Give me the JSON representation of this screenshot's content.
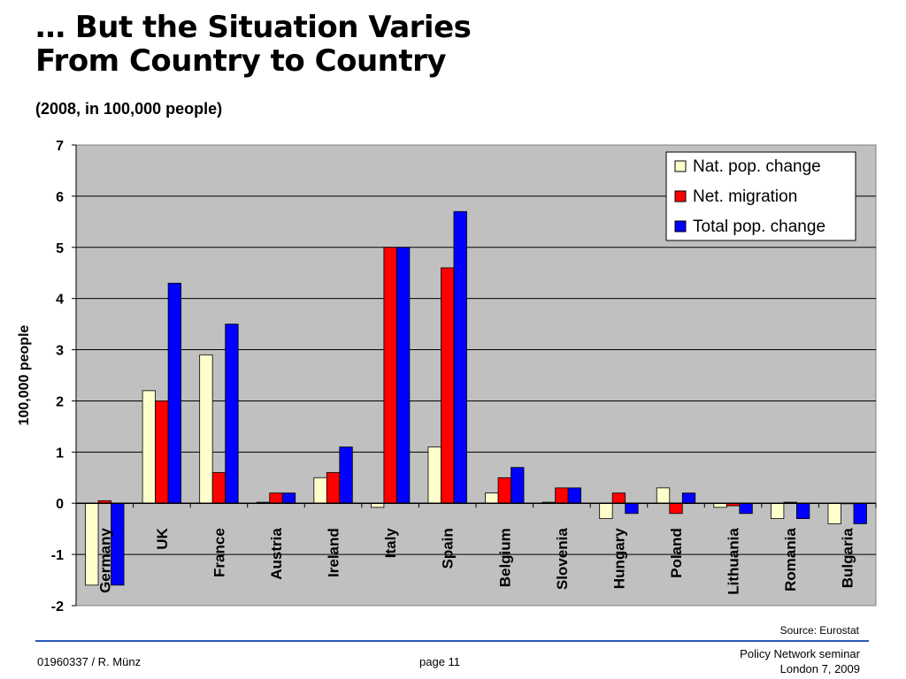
{
  "slide": {
    "title_line1": "… But the Situation Varies",
    "title_line2": "From Country to Country",
    "subtitle": "(2008, in 100,000 people)",
    "source": "Source: Eurostat",
    "footer_left": "01960337 / R. Münz",
    "footer_page": "page 11",
    "footer_right_line1": "Policy Network seminar",
    "footer_right_line2": "London 7, 2009"
  },
  "chart_data": {
    "type": "bar",
    "title": "",
    "xlabel": "",
    "ylabel": "100,000 people",
    "ylim": [
      -2,
      7
    ],
    "yticks": [
      -2,
      -1,
      0,
      1,
      2,
      3,
      4,
      5,
      6,
      7
    ],
    "grid": true,
    "legend_position": "top-right",
    "categories": [
      "Germany",
      "UK",
      "France",
      "Austria",
      "Ireland",
      "Italy",
      "Spain",
      "Belgium",
      "Slovenia",
      "Hungary",
      "Poland",
      "Lithuania",
      "Romania",
      "Bulgaria"
    ],
    "series": [
      {
        "name": "Nat. pop. change",
        "color": "#ffffcc",
        "values": [
          -1.6,
          2.2,
          2.9,
          0.02,
          0.5,
          -0.08,
          1.1,
          0.2,
          0.02,
          -0.3,
          0.3,
          -0.08,
          -0.3,
          -0.4
        ]
      },
      {
        "name": "Net. migration",
        "color": "#ff0000",
        "values": [
          0.05,
          2.0,
          0.6,
          0.2,
          0.6,
          5.0,
          4.6,
          0.5,
          0.3,
          0.2,
          -0.2,
          -0.05,
          0.02,
          0.0
        ]
      },
      {
        "name": "Total pop. change",
        "color": "#0000ff",
        "values": [
          -1.6,
          4.3,
          3.5,
          0.2,
          1.1,
          5.0,
          5.7,
          0.7,
          0.3,
          -0.2,
          0.2,
          -0.2,
          -0.3,
          -0.4
        ]
      }
    ],
    "plot_background": "#c0c0c0"
  }
}
